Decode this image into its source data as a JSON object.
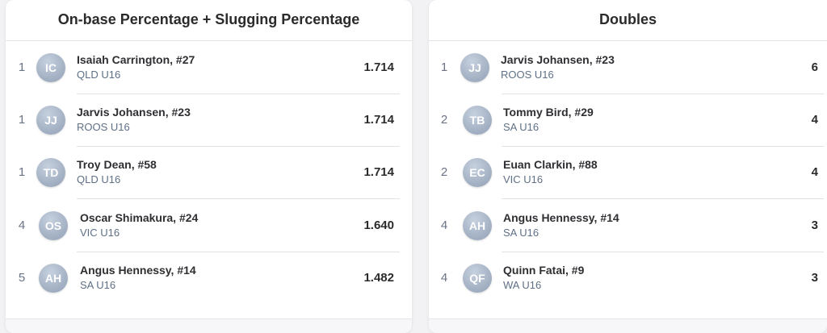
{
  "ops_card": {
    "title": "On-base Percentage + Slugging Percentage",
    "rows": [
      {
        "rank": "1",
        "initials": "IC",
        "name": "Isaiah Carrington, #27",
        "team": "QLD U16",
        "value": "1.714"
      },
      {
        "rank": "1",
        "initials": "JJ",
        "name": "Jarvis Johansen, #23",
        "team": "ROOS U16",
        "value": "1.714"
      },
      {
        "rank": "1",
        "initials": "TD",
        "name": "Troy Dean, #58",
        "team": "QLD U16",
        "value": "1.714"
      },
      {
        "rank": "4",
        "initials": "OS",
        "name": "Oscar Shimakura, #24",
        "team": "VIC U16",
        "value": "1.640"
      },
      {
        "rank": "5",
        "initials": "AH",
        "name": "Angus Hennessy, #14",
        "team": "SA U16",
        "value": "1.482"
      }
    ]
  },
  "doubles_card": {
    "title": "Doubles",
    "rows": [
      {
        "rank": "1",
        "initials": "JJ",
        "name": "Jarvis Johansen, #23",
        "team": "ROOS U16",
        "value": "6"
      },
      {
        "rank": "2",
        "initials": "TB",
        "name": "Tommy Bird, #29",
        "team": "SA U16",
        "value": "4"
      },
      {
        "rank": "2",
        "initials": "EC",
        "name": "Euan Clarkin, #88",
        "team": "VIC U16",
        "value": "4"
      },
      {
        "rank": "4",
        "initials": "AH",
        "name": "Angus Hennessy, #14",
        "team": "SA U16",
        "value": "3"
      },
      {
        "rank": "4",
        "initials": "QF",
        "name": "Quinn Fatai, #9",
        "team": "WA U16",
        "value": "3"
      }
    ]
  },
  "colors": {
    "avatar": "#a8b5c7",
    "team_text": "#5f7086",
    "card_bg": "#ffffff",
    "page_bg": "#f2f2f4"
  }
}
